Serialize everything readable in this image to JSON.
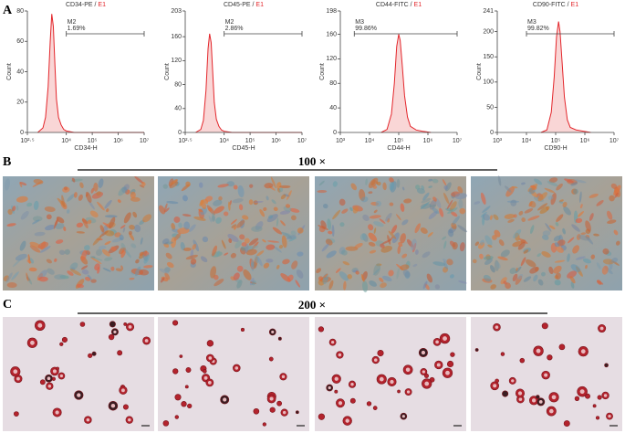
{
  "panels": {
    "a_label": "A",
    "b_label": "B",
    "c_label": "C",
    "b_magnification": "100 ×",
    "c_magnification": "200 ×"
  },
  "chart_data": [
    {
      "type": "area",
      "title": "CD34-PE /",
      "sample": "E1",
      "x_label": "CD34-H",
      "y_label": "Count",
      "xscale": "log",
      "color": "#e3262b",
      "fill": "#f9d6d6",
      "x": [
        794,
        1259,
        1585,
        1995,
        2399,
        2754,
        3162,
        3631,
        4169,
        5012,
        6310,
        7943,
        10000,
        19953,
        10000000
      ],
      "values": [
        0,
        3,
        10,
        30,
        60,
        78,
        70,
        45,
        22,
        10,
        5,
        2,
        1,
        0,
        0
      ],
      "xlim": [
        316.2,
        10000000
      ],
      "xticks": [
        {
          "value": 316.2,
          "label": "10²·⁵"
        },
        {
          "value": 10000,
          "label": "10⁴"
        },
        {
          "value": 100000,
          "label": "10⁵"
        },
        {
          "value": 1000000,
          "label": "10⁶"
        },
        {
          "value": 10000000,
          "label": "10⁷"
        }
      ],
      "ylim": [
        0,
        80
      ],
      "yticks": [
        0,
        20,
        40,
        60,
        80
      ],
      "gate": {
        "name": "M2",
        "percent": "1.69%",
        "range": [
          10000,
          10000000
        ]
      }
    },
    {
      "type": "area",
      "title": "CD45-PE /",
      "sample": "E1",
      "x_label": "CD45-H",
      "y_label": "Count",
      "xscale": "log",
      "color": "#e3262b",
      "fill": "#f9d6d6",
      "x": [
        794,
        1259,
        1585,
        1995,
        2399,
        2754,
        3162,
        3631,
        4169,
        5012,
        6310,
        7943,
        10000,
        19953,
        10000000
      ],
      "values": [
        0,
        5,
        20,
        70,
        140,
        165,
        150,
        100,
        50,
        22,
        10,
        4,
        2,
        0,
        0
      ],
      "xlim": [
        316.2,
        10000000
      ],
      "xticks": [
        {
          "value": 316.2,
          "label": "10²·⁵"
        },
        {
          "value": 10000,
          "label": "10⁴"
        },
        {
          "value": 100000,
          "label": "10⁵"
        },
        {
          "value": 1000000,
          "label": "10⁶"
        },
        {
          "value": 10000000,
          "label": "10⁷"
        }
      ],
      "ylim": [
        0,
        203
      ],
      "yticks": [
        0,
        40,
        80,
        120,
        160,
        203
      ],
      "gate": {
        "name": "M2",
        "percent": "2.86%",
        "range": [
          10000,
          10000000
        ]
      }
    },
    {
      "type": "area",
      "title": "CD44-FITC /",
      "sample": "E1",
      "x_label": "CD44-H",
      "y_label": "Count",
      "xscale": "log",
      "color": "#e3262b",
      "fill": "#f9d6d6",
      "x": [
        25119,
        39811,
        56234,
        70795,
        85114,
        100000,
        112202,
        131826,
        158489,
        199526,
        251189,
        398107,
        630957,
        1258925
      ],
      "values": [
        0,
        5,
        30,
        80,
        140,
        160,
        150,
        110,
        60,
        25,
        10,
        4,
        2,
        0
      ],
      "xlim": [
        1000,
        10000000
      ],
      "xticks": [
        {
          "value": 1000,
          "label": "10³"
        },
        {
          "value": 10000,
          "label": "10⁴"
        },
        {
          "value": 100000,
          "label": "10⁵"
        },
        {
          "value": 1000000,
          "label": "10⁶"
        },
        {
          "value": 10000000,
          "label": "10⁷"
        }
      ],
      "ylim": [
        0,
        198
      ],
      "yticks": [
        0,
        40,
        80,
        120,
        160,
        198
      ],
      "gate": {
        "name": "M3",
        "percent": "99.86%",
        "range": [
          3000,
          10000000
        ]
      }
    },
    {
      "type": "area",
      "title": "CD90-FITC /",
      "sample": "E1",
      "x_label": "CD90-H",
      "y_label": "Count",
      "xscale": "log",
      "color": "#e3262b",
      "fill": "#f9d6d6",
      "x": [
        31623,
        50119,
        70795,
        89125,
        107152,
        125893,
        141254,
        165959,
        199526,
        251189,
        316228,
        501187,
        794328,
        1584893
      ],
      "values": [
        0,
        5,
        40,
        110,
        190,
        220,
        200,
        140,
        70,
        25,
        10,
        5,
        3,
        0
      ],
      "xlim": [
        1000,
        10000000
      ],
      "xticks": [
        {
          "value": 1000,
          "label": "10³"
        },
        {
          "value": 10000,
          "label": "10⁴"
        },
        {
          "value": 100000,
          "label": "10⁵"
        },
        {
          "value": 1000000,
          "label": "10⁶"
        },
        {
          "value": 10000000,
          "label": "10⁷"
        }
      ],
      "ylim": [
        0,
        241
      ],
      "yticks": [
        0,
        50,
        100,
        150,
        200,
        241
      ],
      "gate": {
        "name": "M3",
        "percent": "99.82%",
        "range": [
          10000,
          10000000
        ]
      }
    }
  ]
}
